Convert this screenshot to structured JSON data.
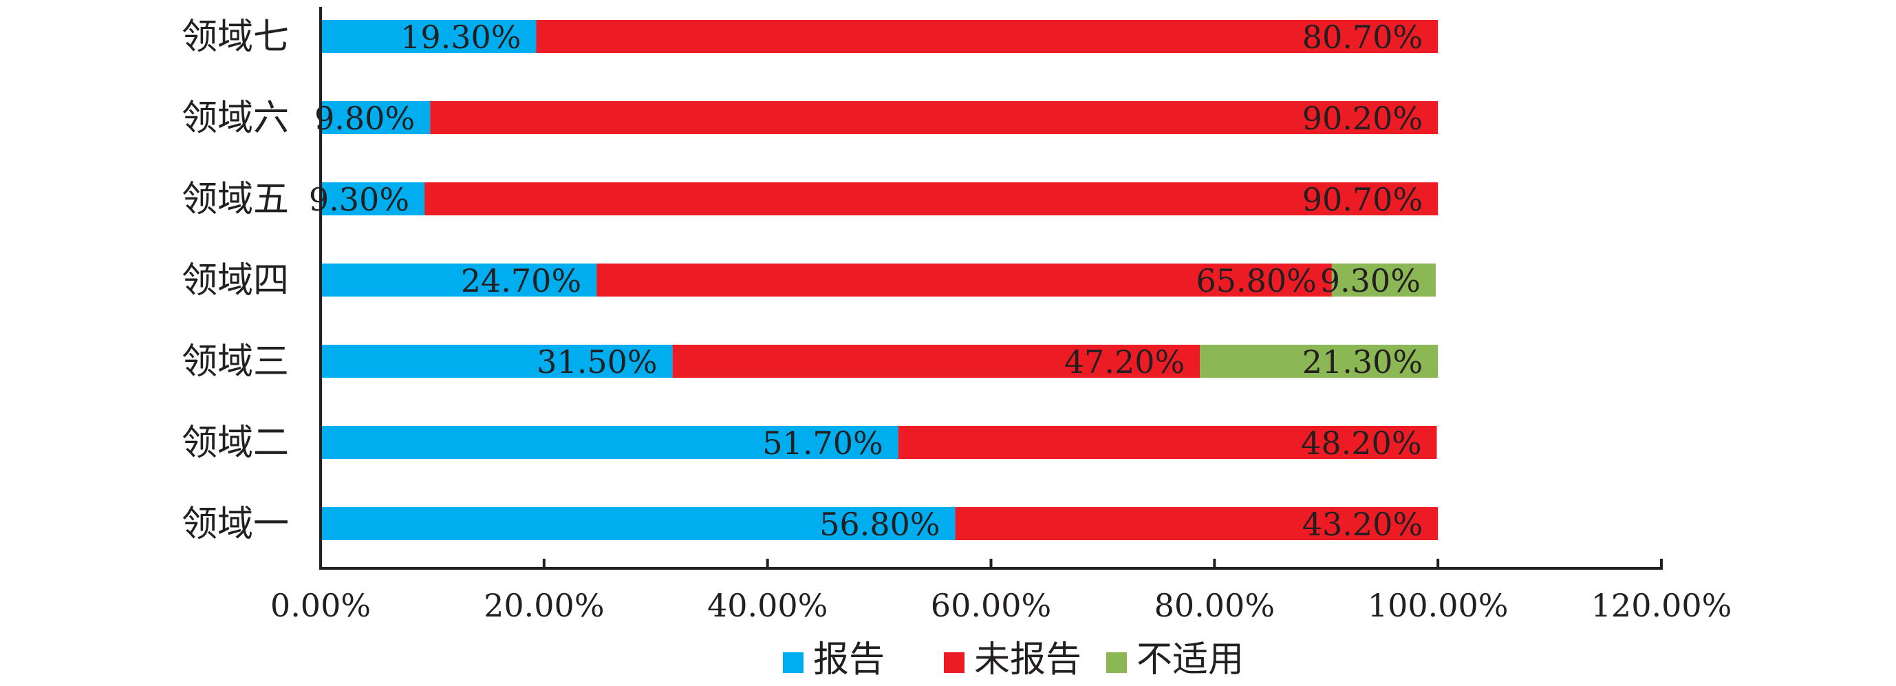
{
  "chart_data": {
    "type": "bar",
    "orientation": "horizontal",
    "stacked": true,
    "categories": [
      "领域七",
      "领域六",
      "领域五",
      "领域四",
      "领域三",
      "领域二",
      "领域一"
    ],
    "series": [
      {
        "name": "报告",
        "color": "#00aeef",
        "values": [
          19.3,
          9.8,
          9.3,
          24.7,
          31.5,
          51.7,
          56.8
        ],
        "labels": [
          "19.30%",
          "9.80%",
          "9.30%",
          "24.70%",
          "31.50%",
          "51.70%",
          "56.80%"
        ]
      },
      {
        "name": "未报告",
        "color": "#ed1c24",
        "values": [
          80.7,
          90.2,
          90.7,
          65.8,
          47.2,
          48.2,
          43.2
        ],
        "labels": [
          "80.70%",
          "90.20%",
          "90.70%",
          "65.80%",
          "47.20%",
          "48.20%",
          "43.20%"
        ]
      },
      {
        "name": "不适用",
        "color": "#8bb755",
        "values": [
          0,
          0,
          0,
          9.3,
          21.3,
          0,
          0
        ],
        "labels": [
          "",
          "",
          "",
          "9.30%",
          "21.30%",
          "",
          ""
        ]
      }
    ],
    "x_ticks": [
      "0.00%",
      "20.00%",
      "40.00%",
      "60.00%",
      "80.00%",
      "100.00%",
      "120.00%"
    ],
    "xlim": [
      0,
      120
    ],
    "grid": false,
    "legend_position": "bottom"
  }
}
